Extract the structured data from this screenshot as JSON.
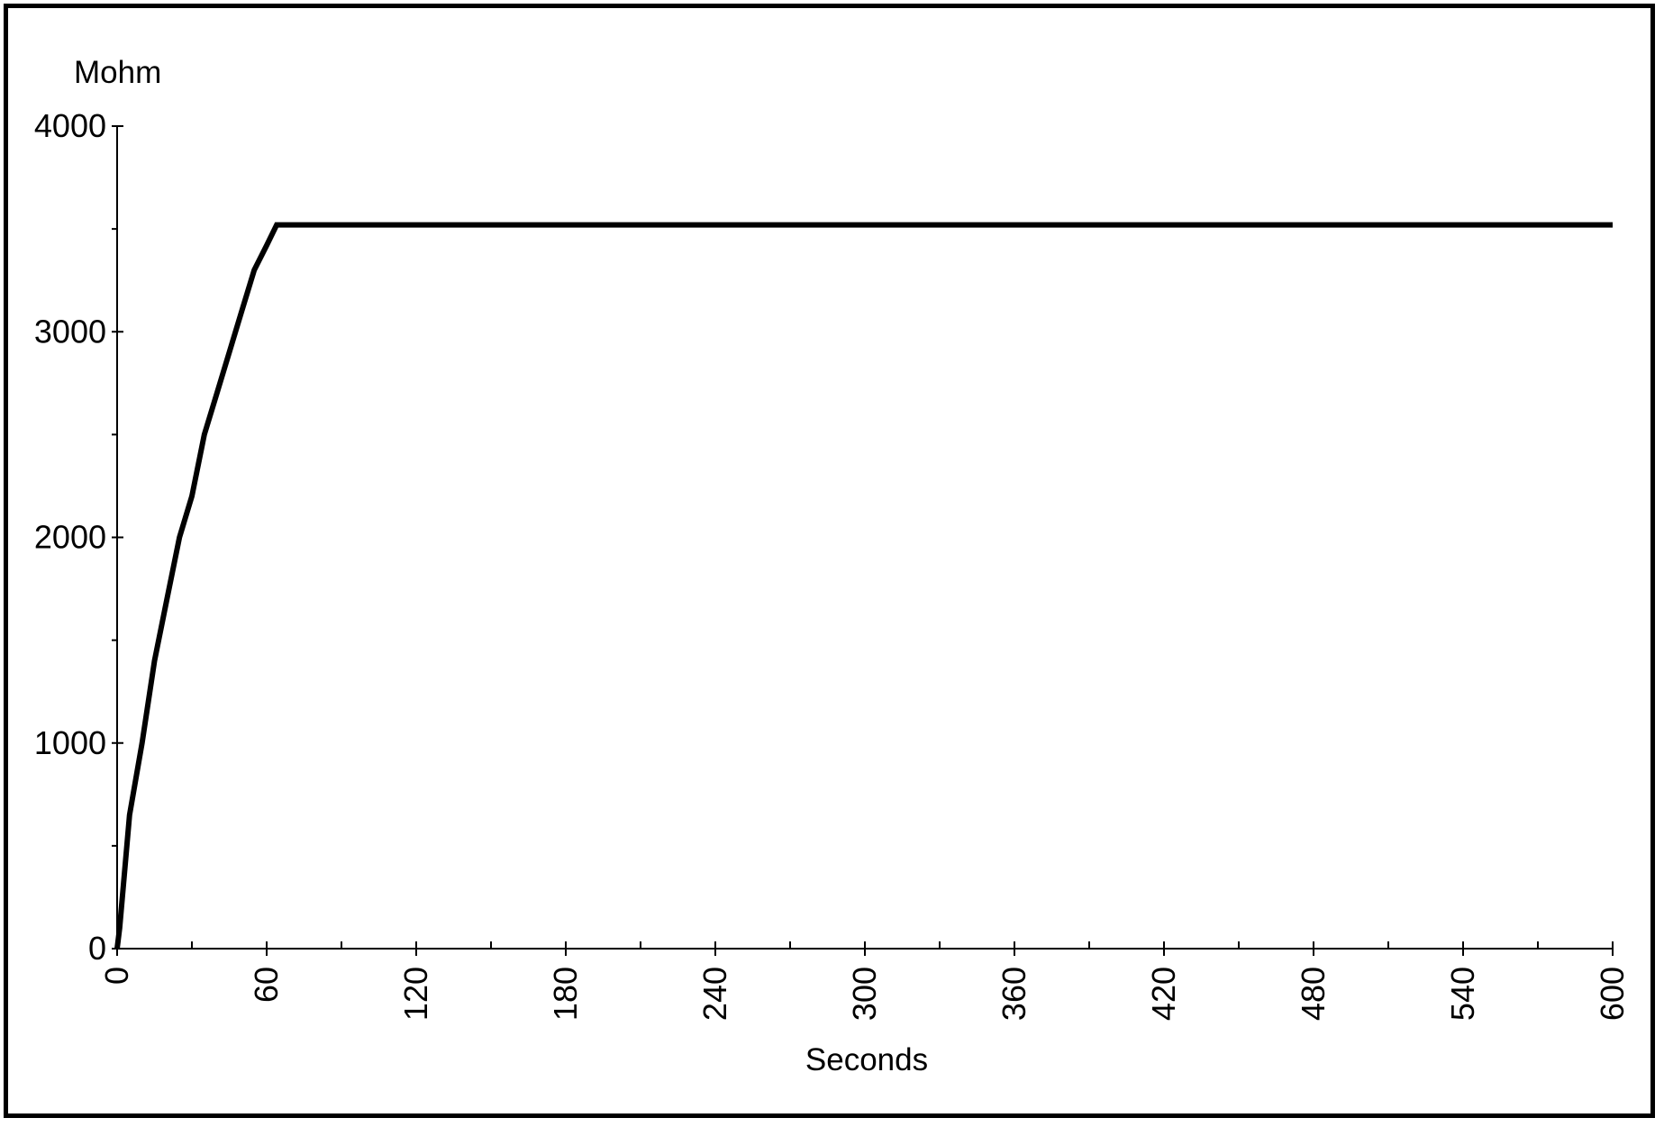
{
  "chart_data": {
    "type": "line",
    "title": "",
    "xlabel": "Seconds",
    "ylabel": "Mohm",
    "xlim": [
      0,
      600
    ],
    "ylim": [
      0,
      4000
    ],
    "x_ticks": [
      0,
      60,
      120,
      180,
      240,
      300,
      360,
      420,
      480,
      540,
      600
    ],
    "x_minor_ticks": [
      30,
      90,
      150,
      210,
      270,
      330,
      390,
      450,
      510,
      570
    ],
    "y_ticks": [
      0,
      1000,
      2000,
      3000,
      4000
    ],
    "y_minor_ticks": [
      500,
      1500,
      2500,
      3500
    ],
    "grid": false,
    "legend": "none",
    "series": [
      {
        "color": "#000000",
        "points": [
          [
            0,
            0
          ],
          [
            1,
            100
          ],
          [
            5,
            650
          ],
          [
            10,
            1000
          ],
          [
            15,
            1400
          ],
          [
            20,
            1700
          ],
          [
            25,
            2000
          ],
          [
            30,
            2200
          ],
          [
            35,
            2500
          ],
          [
            40,
            2700
          ],
          [
            45,
            2900
          ],
          [
            50,
            3100
          ],
          [
            55,
            3300
          ],
          [
            60,
            3420
          ],
          [
            64,
            3520
          ],
          [
            600,
            3520
          ]
        ]
      }
    ]
  }
}
